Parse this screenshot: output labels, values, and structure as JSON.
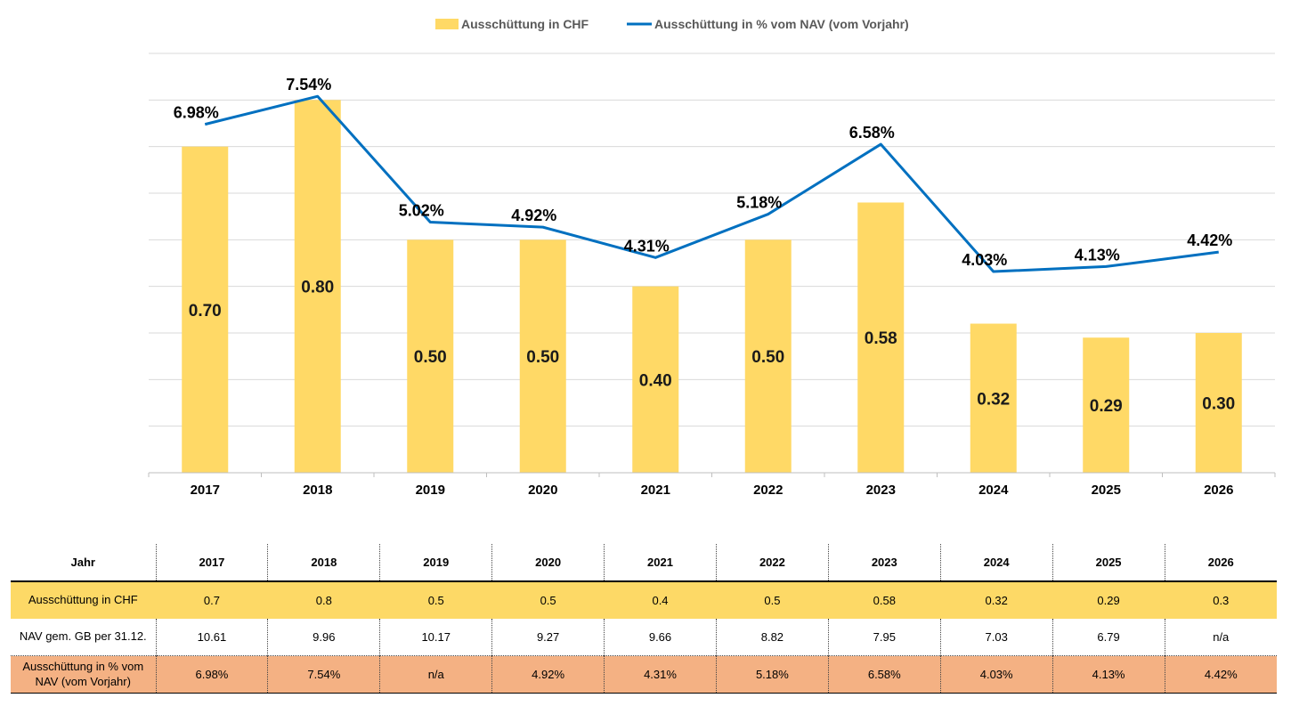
{
  "colors": {
    "bar": "#ffd966",
    "line": "#0070c0",
    "grid": "#d9d9d9",
    "axis": "#bfbfbf",
    "row_chf": "#fdd966",
    "row_pct": "#f4b183"
  },
  "chart_data": {
    "type": "bar+line",
    "categories": [
      "2017",
      "2018",
      "2019",
      "2020",
      "2021",
      "2022",
      "2023",
      "2024",
      "2025",
      "2026"
    ],
    "legend": {
      "position": "top",
      "items": [
        "Ausschüttung in CHF",
        "Ausschüttung in % vom NAV (vom Vorjahr)"
      ]
    },
    "grid": true,
    "series": [
      {
        "name": "Ausschüttung in CHF",
        "type": "bar",
        "axis": "left",
        "ylim": [
          0,
          0.9
        ],
        "values": [
          0.7,
          0.8,
          0.5,
          0.5,
          0.4,
          0.5,
          0.58,
          0.32,
          0.29,
          0.3
        ],
        "labels": [
          "0.70",
          "0.80",
          "0.50",
          "0.50",
          "0.40",
          "0.50",
          "0.58",
          "0.32",
          "0.29",
          "0.30"
        ]
      },
      {
        "name": "Ausschüttung in % vom NAV (vom Vorjahr)",
        "type": "line",
        "axis": "right",
        "ylim": [
          0,
          8.4
        ],
        "values": [
          6.98,
          7.54,
          5.02,
          4.92,
          4.31,
          5.18,
          6.58,
          4.03,
          4.13,
          4.42
        ],
        "labels": [
          "6.98%",
          "7.54%",
          "5.02%",
          "4.92%",
          "4.31%",
          "5.18%",
          "6.58%",
          "4.03%",
          "4.13%",
          "4.42%"
        ]
      }
    ]
  },
  "table": {
    "header_label": "Jahr",
    "years": [
      "2017",
      "2018",
      "2019",
      "2020",
      "2021",
      "2022",
      "2023",
      "2024",
      "2025",
      "2026"
    ],
    "rows": [
      {
        "label": "Ausschüttung in CHF",
        "values": [
          "0.7",
          "0.8",
          "0.5",
          "0.5",
          "0.4",
          "0.5",
          "0.58",
          "0.32",
          "0.29",
          "0.3"
        ]
      },
      {
        "label": "NAV gem. GB per 31.12.",
        "values": [
          "10.61",
          "9.96",
          "10.17",
          "9.27",
          "9.66",
          "8.82",
          "7.95",
          "7.03",
          "6.79",
          "n/a"
        ]
      },
      {
        "label": "Ausschüttung in % vom NAV (vom Vorjahr)",
        "values": [
          "6.98%",
          "7.54%",
          "n/a",
          "4.92%",
          "4.31%",
          "5.18%",
          "6.58%",
          "4.03%",
          "4.13%",
          "4.42%"
        ]
      }
    ]
  }
}
